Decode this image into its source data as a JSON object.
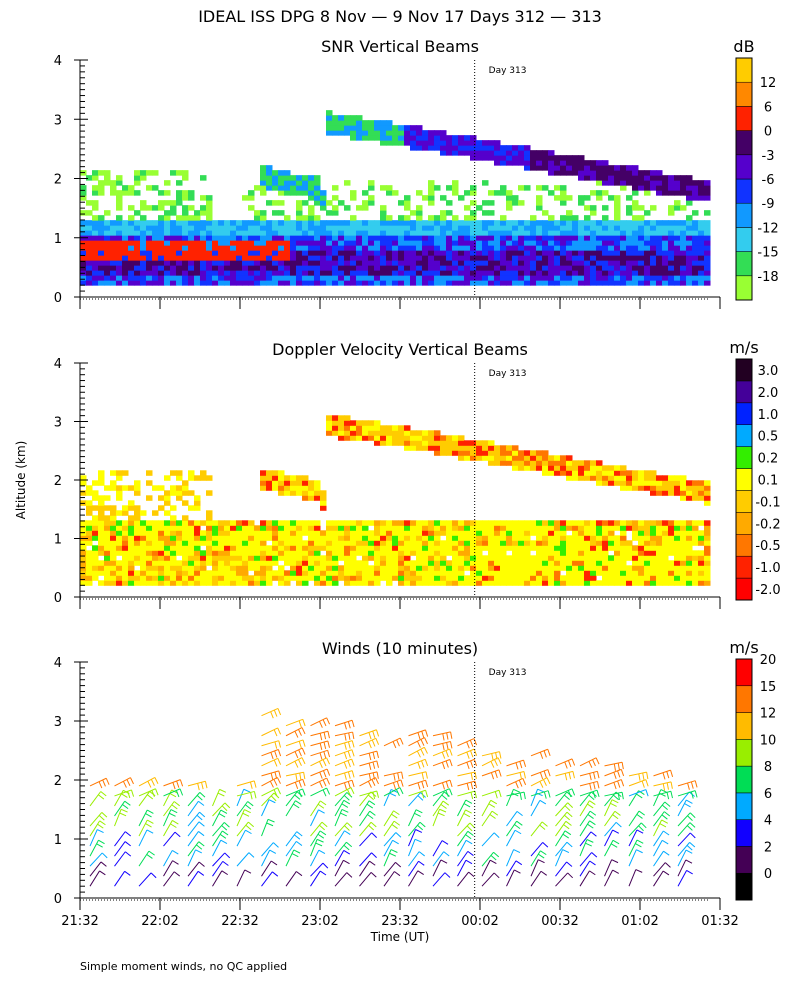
{
  "title": "IDEAL ISS DPG   8 Nov —   9 Nov 17 Days 312 — 313",
  "footer": "Simple moment winds, no QC applied",
  "ylabel": "Altitude (km)",
  "xlabel": "Time (UT)",
  "day_marker": "Day 313",
  "colors": {
    "snr": [
      "#99ff33",
      "#33dd55",
      "#33ccee",
      "#1199ff",
      "#1133ff",
      "#5500cc",
      "#440066",
      "#ff2200",
      "#ff8800",
      "#ffcc00"
    ],
    "vel": [
      "#ff0000",
      "#ff2200",
      "#ff7700",
      "#ffaa00",
      "#ffcc00",
      "#ffff00",
      "#33ee00",
      "#00aaff",
      "#0022ff",
      "#440099",
      "#220022"
    ],
    "wind": [
      "#000000",
      "#440055",
      "#1100ff",
      "#00aaff",
      "#00dd55",
      "#99ee00",
      "#ffbb00",
      "#ff7700",
      "#ff0000"
    ]
  },
  "chart_data": [
    {
      "type": "heatmap",
      "title": "SNR Vertical Beams",
      "ylabel": "Altitude (km)",
      "ylim": [
        0,
        4
      ],
      "yticks": [
        "0",
        "1",
        "2",
        "3",
        "4"
      ],
      "xlim": [
        "21:32",
        "01:32"
      ],
      "xticks": [
        "21:32",
        "22:02",
        "22:32",
        "23:02",
        "23:32",
        "00:02",
        "00:32",
        "01:02",
        "01:32"
      ],
      "show_xtick_labels": false,
      "colorbar": {
        "units": "dB",
        "labels": [
          "-18",
          "-15",
          "-12",
          "-9",
          "-6",
          "-3",
          "0",
          "6",
          "12"
        ]
      }
    },
    {
      "type": "heatmap",
      "title": "Doppler Velocity Vertical Beams",
      "ylabel": "Altitude (km)",
      "ylim": [
        0,
        4
      ],
      "yticks": [
        "0",
        "1",
        "2",
        "3",
        "4"
      ],
      "xlim": [
        "21:32",
        "01:32"
      ],
      "xticks": [
        "21:32",
        "22:02",
        "22:32",
        "23:02",
        "23:32",
        "00:02",
        "00:32",
        "01:02",
        "01:32"
      ],
      "show_xtick_labels": false,
      "colorbar": {
        "units": "m/s",
        "labels": [
          "-2.0",
          "-1.0",
          "-0.5",
          "-0.2",
          "-0.1",
          "0.1",
          "0.2",
          "0.5",
          "1.0",
          "2.0",
          "3.0"
        ]
      }
    },
    {
      "type": "scatter",
      "title": "Winds (10 minutes)",
      "ylabel": "Altitude (km)",
      "xlabel": "Time (UT)",
      "ylim": [
        0,
        4
      ],
      "yticks": [
        "0",
        "1",
        "2",
        "3",
        "4"
      ],
      "xlim": [
        "21:32",
        "01:32"
      ],
      "xticks": [
        "21:32",
        "22:02",
        "22:32",
        "23:02",
        "23:32",
        "00:02",
        "00:32",
        "01:02",
        "01:32"
      ],
      "show_xtick_labels": true,
      "colorbar": {
        "units": "m/s",
        "labels": [
          "0",
          "2",
          "4",
          "6",
          "8",
          "10",
          "12",
          "15",
          "20"
        ]
      }
    }
  ]
}
